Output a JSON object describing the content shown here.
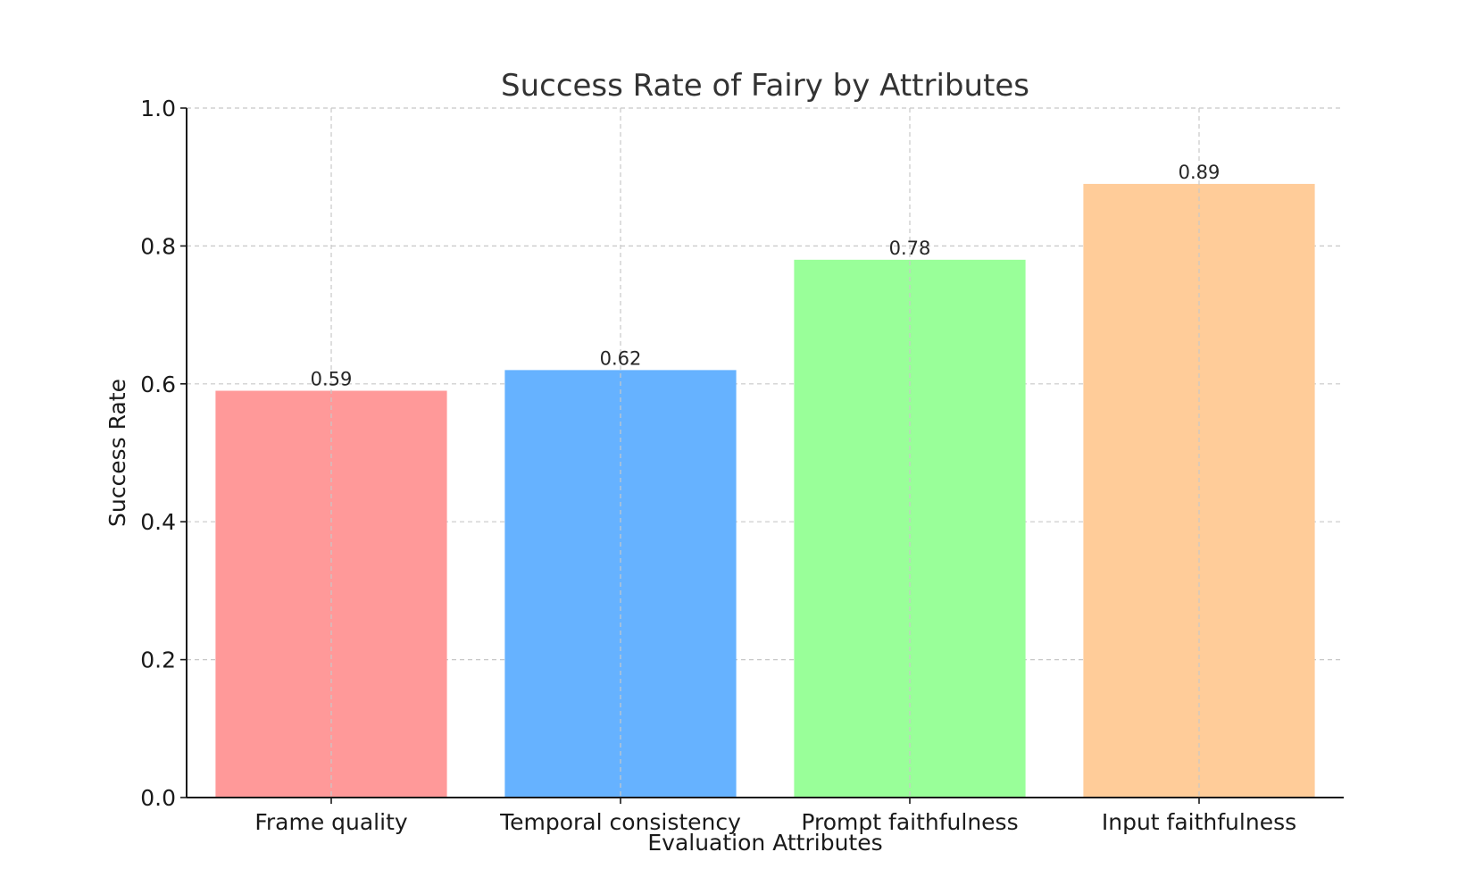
{
  "chart_data": {
    "type": "bar",
    "title": "Success Rate of Fairy by Attributes",
    "xlabel": "Evaluation Attributes",
    "ylabel": "Success Rate",
    "categories": [
      "Frame quality",
      "Temporal consistency",
      "Prompt faithfulness",
      "Input faithfulness"
    ],
    "values": [
      0.59,
      0.62,
      0.78,
      0.89
    ],
    "value_labels": [
      "0.59",
      "0.62",
      "0.78",
      "0.89"
    ],
    "colors": [
      "#ff9999",
      "#66b2ff",
      "#99ff99",
      "#ffcc99"
    ],
    "ylim": [
      0,
      1.0
    ],
    "yticks": [
      0.0,
      0.2,
      0.4,
      0.6,
      0.8,
      1.0
    ],
    "ytick_labels": [
      "0.0",
      "0.2",
      "0.4",
      "0.6",
      "0.8",
      "1.0"
    ],
    "grid": true,
    "grid_style": "dashed",
    "legend": false
  }
}
